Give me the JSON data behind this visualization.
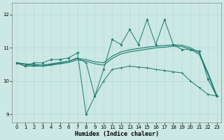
{
  "xlabel": "Humidex (Indice chaleur)",
  "bg_color": "#cce8e4",
  "line_color": "#1a7a6e",
  "xlim": [
    -0.5,
    23.5
  ],
  "ylim": [
    8.75,
    12.35
  ],
  "yticks": [
    9,
    10,
    11,
    12
  ],
  "xticks": [
    0,
    1,
    2,
    3,
    4,
    5,
    6,
    7,
    8,
    9,
    10,
    11,
    12,
    13,
    14,
    15,
    16,
    17,
    18,
    19,
    20,
    21,
    22,
    23
  ],
  "xlabel_fontsize": 6.0,
  "tick_fontsize": 5.0,
  "x_jagged": [
    0,
    1,
    2,
    3,
    4,
    5,
    6,
    7,
    8,
    9,
    10,
    11,
    12,
    13,
    14,
    15,
    16,
    17,
    18,
    19,
    20,
    21,
    22,
    23
  ],
  "y_jagged": [
    10.55,
    10.45,
    10.55,
    10.55,
    10.65,
    10.65,
    10.7,
    10.85,
    9.0,
    9.55,
    10.35,
    11.25,
    11.1,
    11.55,
    11.1,
    11.85,
    11.1,
    11.85,
    11.1,
    10.95,
    10.95,
    10.9,
    10.05,
    9.55
  ],
  "x_smooth1": [
    0,
    1,
    2,
    3,
    4,
    5,
    6,
    7,
    8,
    9,
    10,
    11,
    12,
    13,
    14,
    15,
    16,
    17,
    18,
    19,
    20,
    21,
    22,
    23
  ],
  "y_smooth1": [
    10.55,
    10.52,
    10.5,
    10.48,
    10.52,
    10.56,
    10.6,
    10.68,
    10.65,
    10.58,
    10.55,
    10.75,
    10.88,
    10.94,
    10.98,
    11.02,
    11.05,
    11.07,
    11.09,
    11.08,
    11.0,
    10.85,
    10.25,
    9.58
  ],
  "x_smooth2": [
    0,
    1,
    2,
    3,
    4,
    5,
    6,
    7,
    8,
    9,
    10,
    11,
    12,
    13,
    14,
    15,
    16,
    17,
    18,
    19,
    20,
    21,
    22,
    23
  ],
  "y_smooth2": [
    10.55,
    10.5,
    10.47,
    10.45,
    10.48,
    10.52,
    10.56,
    10.64,
    10.6,
    10.52,
    10.48,
    10.68,
    10.82,
    10.88,
    10.92,
    10.96,
    11.0,
    11.02,
    11.05,
    11.04,
    10.95,
    10.8,
    10.2,
    9.52
  ],
  "x_lower": [
    0,
    1,
    2,
    3,
    4,
    5,
    6,
    7,
    8,
    9,
    10,
    11,
    12,
    13,
    14,
    15,
    16,
    17,
    18,
    19,
    20,
    21,
    22,
    23
  ],
  "y_lower": [
    10.55,
    10.45,
    10.45,
    10.45,
    10.5,
    10.55,
    10.6,
    10.7,
    10.55,
    9.55,
    10.0,
    10.35,
    10.4,
    10.45,
    10.42,
    10.4,
    10.35,
    10.32,
    10.28,
    10.25,
    10.0,
    9.8,
    9.6,
    9.55
  ]
}
